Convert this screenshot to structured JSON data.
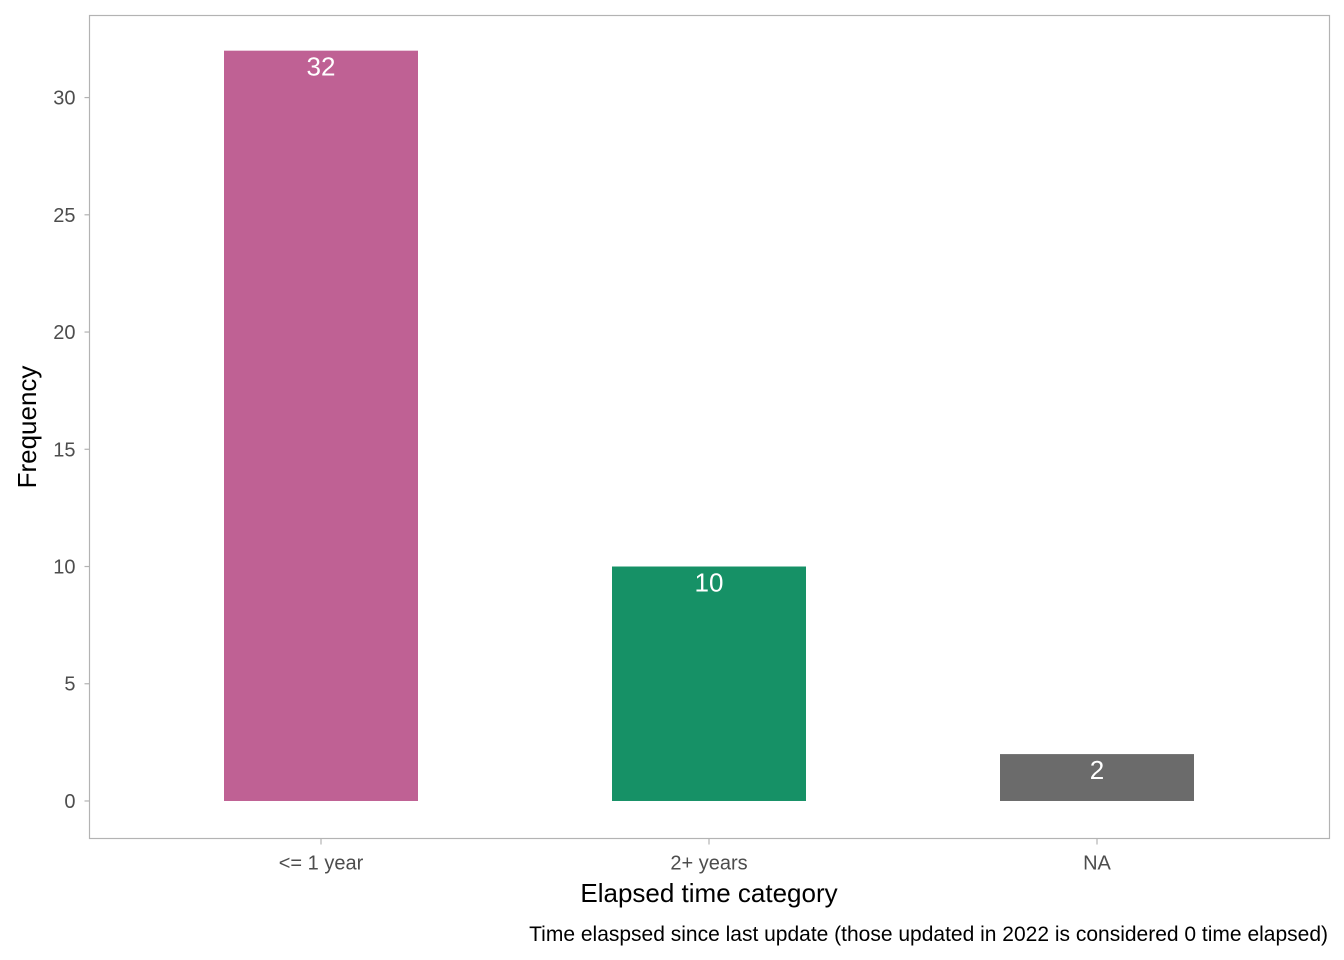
{
  "chart_data": {
    "type": "bar",
    "categories": [
      "<= 1 year",
      "2+ years",
      "NA"
    ],
    "values": [
      32,
      10,
      2
    ],
    "data_labels": [
      "32",
      "10",
      "2"
    ],
    "colors": [
      "#bf6194",
      "#169166",
      "#6b6b6b"
    ],
    "xlabel": "Elapsed time category",
    "ylabel": "Frequency",
    "caption": "Time elaspsed since last update (those updated in 2022 is considered 0 time elapsed)",
    "ylim": [
      -1.6,
      33.5
    ],
    "yticks": [
      0,
      5,
      10,
      15,
      20,
      25,
      30
    ],
    "ytick_labels": [
      "0",
      "5",
      "10",
      "15",
      "20",
      "25",
      "30"
    ],
    "grid": false,
    "legend": "none"
  }
}
